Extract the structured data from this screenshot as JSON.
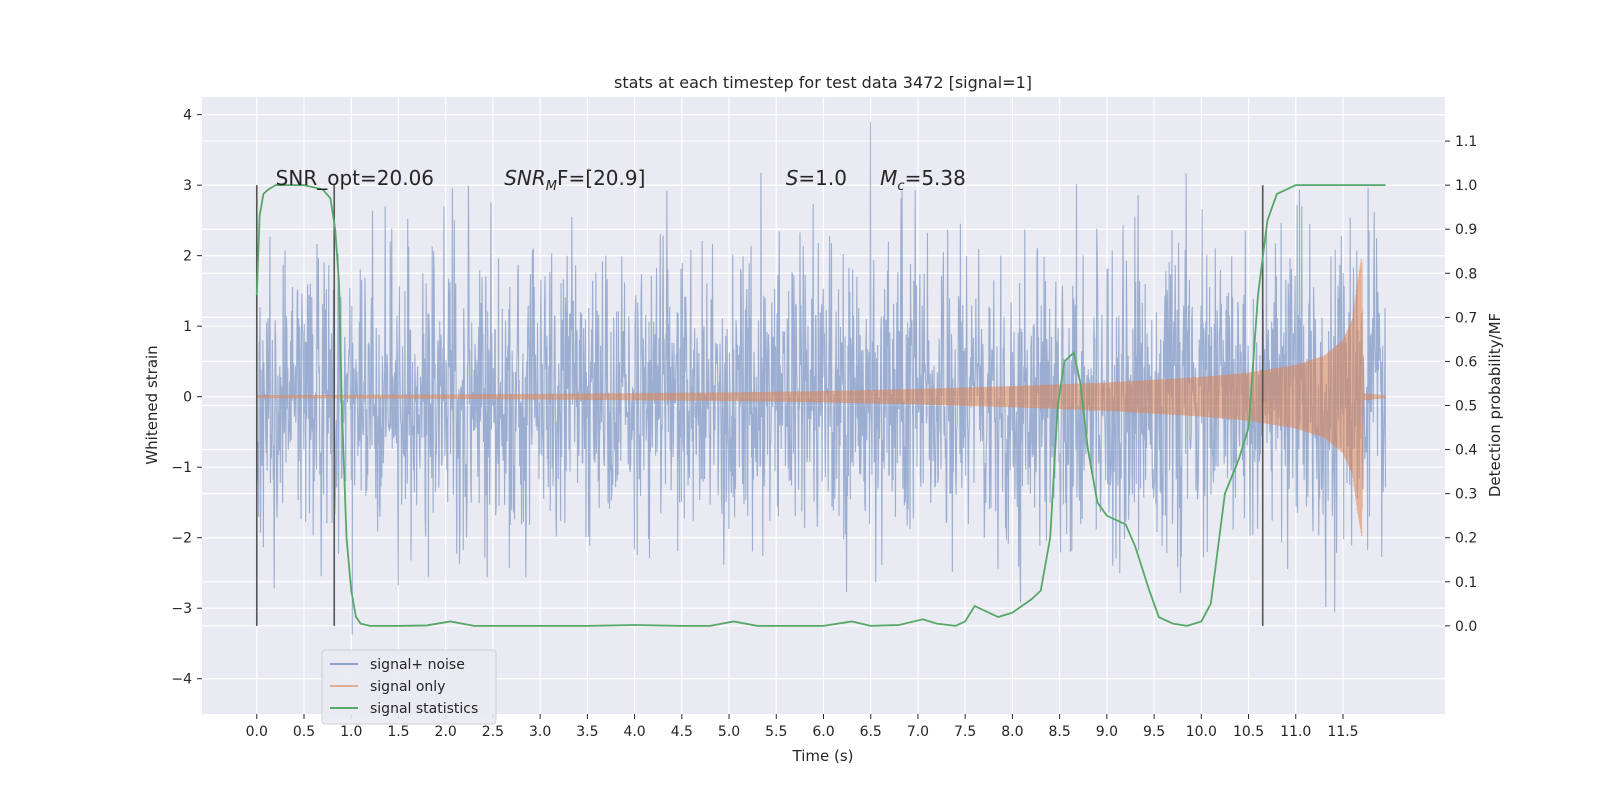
{
  "chart_data": {
    "type": "line",
    "title": "stats at each timestep for test data 3472 [signal=1]",
    "xlabel": "Time (s)",
    "ylabel_left": "Whitened strain",
    "ylabel_right": "Detection probability/MF",
    "xlim": [
      -0.58,
      12.58
    ],
    "ylim_left": [
      -4.5,
      4.25
    ],
    "ylim_right": [
      -0.2,
      1.2
    ],
    "x_ticks": [
      0.0,
      0.5,
      1.0,
      1.5,
      2.0,
      2.5,
      3.0,
      3.5,
      4.0,
      4.5,
      5.0,
      5.5,
      6.0,
      6.5,
      7.0,
      7.5,
      8.0,
      8.5,
      9.0,
      9.5,
      10.0,
      10.5,
      11.0,
      11.5
    ],
    "x_tick_labels": [
      "0.0",
      "0.5",
      "1.0",
      "1.5",
      "2.0",
      "2.5",
      "3.0",
      "3.5",
      "4.0",
      "4.5",
      "5.0",
      "5.5",
      "6.0",
      "6.5",
      "7.0",
      "7.5",
      "8.0",
      "8.5",
      "9.0",
      "9.5",
      "10.0",
      "10.5",
      "11.0",
      "11.5"
    ],
    "y_left_ticks": [
      -4,
      -3,
      -2,
      -1,
      0,
      1,
      2,
      3,
      4
    ],
    "y_left_tick_labels": [
      "−4",
      "−3",
      "−2",
      "−1",
      "0",
      "1",
      "2",
      "3",
      "4"
    ],
    "y_right_ticks": [
      0.0,
      0.1,
      0.2,
      0.3,
      0.4,
      0.5,
      0.6,
      0.7,
      0.8,
      0.9,
      1.0,
      1.1
    ],
    "y_right_tick_labels": [
      "0.0",
      "0.1",
      "0.2",
      "0.3",
      "0.4",
      "0.5",
      "0.6",
      "0.7",
      "0.8",
      "0.9",
      "1.0",
      "1.1"
    ],
    "grid": true,
    "legend_position": "lower-left",
    "series": [
      {
        "name": "signal+ noise",
        "color": "#4c72b0",
        "axis": "left",
        "style": "dense noise trace, amplitude roughly ±2 with peaks to ±4",
        "x_range": [
          0.0,
          11.95
        ]
      },
      {
        "name": "signal only",
        "color": "#dd8452",
        "axis": "left",
        "style": "chirp envelope",
        "envelope_x": [
          0.0,
          2.0,
          4.0,
          5.0,
          6.0,
          7.0,
          8.0,
          9.0,
          10.0,
          10.5,
          11.0,
          11.3,
          11.5,
          11.6,
          11.65,
          11.7,
          11.72,
          11.95
        ],
        "envelope_amp": [
          0.02,
          0.03,
          0.05,
          0.06,
          0.08,
          0.11,
          0.15,
          0.2,
          0.28,
          0.34,
          0.45,
          0.58,
          0.8,
          1.1,
          1.6,
          2.0,
          0.05,
          0.02
        ]
      },
      {
        "name": "signal statistics",
        "color": "#55a868",
        "axis": "right",
        "x": [
          0.0,
          0.03,
          0.07,
          0.12,
          0.2,
          0.3,
          0.5,
          0.7,
          0.78,
          0.83,
          0.87,
          0.9,
          0.95,
          1.0,
          1.05,
          1.1,
          1.2,
          1.5,
          1.8,
          2.05,
          2.3,
          2.6,
          3.0,
          3.5,
          4.0,
          4.5,
          4.8,
          5.05,
          5.3,
          5.7,
          6.0,
          6.3,
          6.5,
          6.8,
          7.05,
          7.2,
          7.4,
          7.5,
          7.6,
          7.7,
          7.85,
          8.0,
          8.2,
          8.3,
          8.4,
          8.48,
          8.55,
          8.65,
          8.72,
          8.8,
          8.9,
          9.0,
          9.2,
          9.3,
          9.45,
          9.55,
          9.7,
          9.85,
          10.0,
          10.1,
          10.25,
          10.4,
          10.5,
          10.6,
          10.7,
          10.8,
          10.9,
          11.0,
          11.2,
          11.5,
          11.8,
          11.95
        ],
        "y": [
          0.75,
          0.93,
          0.98,
          0.99,
          1.0,
          1.0,
          1.0,
          0.99,
          0.97,
          0.9,
          0.78,
          0.5,
          0.2,
          0.08,
          0.02,
          0.005,
          0.0,
          0.0,
          0.001,
          0.01,
          0.0,
          0.0,
          0.0,
          0.0,
          0.002,
          0.0,
          0.0,
          0.01,
          0.0,
          0.0,
          0.0,
          0.01,
          0.0,
          0.002,
          0.015,
          0.005,
          0.0,
          0.01,
          0.045,
          0.035,
          0.02,
          0.03,
          0.06,
          0.08,
          0.2,
          0.5,
          0.6,
          0.62,
          0.55,
          0.4,
          0.28,
          0.25,
          0.23,
          0.18,
          0.08,
          0.02,
          0.005,
          0.0,
          0.01,
          0.05,
          0.3,
          0.38,
          0.45,
          0.75,
          0.92,
          0.98,
          0.99,
          1.0,
          1.0,
          1.0,
          1.0,
          1.0
        ]
      }
    ],
    "vertical_lines": [
      0.0,
      0.82,
      10.65
    ],
    "annotations": [
      {
        "text": "SNR_opt=20.06",
        "x": 0.2,
        "y": 3.1
      },
      {
        "text_main": "SNR",
        "text_sub": "M",
        "text_tail": "F=[20.9]",
        "x": 2.62,
        "y": 3.1
      },
      {
        "text_main": "S",
        "text_tail": "=1.0",
        "x": 5.6,
        "y": 3.1
      },
      {
        "text_main": "M",
        "text_sub": "c",
        "text_tail": "=5.38",
        "x": 6.6,
        "y": 3.1
      }
    ]
  }
}
